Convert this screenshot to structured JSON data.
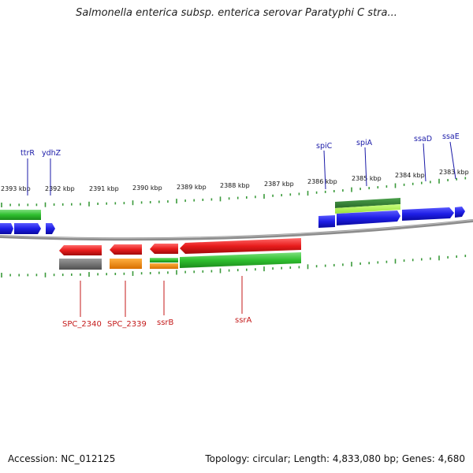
{
  "header": {
    "title": "Salmonella enterica subsp. enterica serovar Paratyphi C stra..."
  },
  "footer": {
    "accession": "Accession: NC_012125",
    "summary": "Topology: circular; Length: 4,833,080 bp; Genes: 4,680"
  },
  "colors": {
    "forward_gene": "#1e1ee6",
    "reverse_gene": "#e81c1c",
    "cds_green": "#2fbf2f",
    "rrna_orange": "#f08c00",
    "gray_feature": "#6a6a6a",
    "tick_green": "#3a9a3a",
    "backbone": "#8c8c8c",
    "label_blue": "#1a1aa8",
    "label_red": "#c41a1a"
  },
  "scale_labels": [
    "2393 kbp",
    "2392 kbp",
    "2391 kbp",
    "2390 kbp",
    "2389 kbp",
    "2388 kbp",
    "2387 kbp",
    "2386 kbp",
    "2385 kbp",
    "2384 kbp",
    "2383 kbp"
  ],
  "top_gene_labels": [
    "ttrR",
    "ydhZ",
    "spiC",
    "spiA",
    "ssaD",
    "ssaE"
  ],
  "bottom_gene_labels": [
    "SPC_2340",
    "SPC_2339",
    "ssrB",
    "ssrA"
  ]
}
